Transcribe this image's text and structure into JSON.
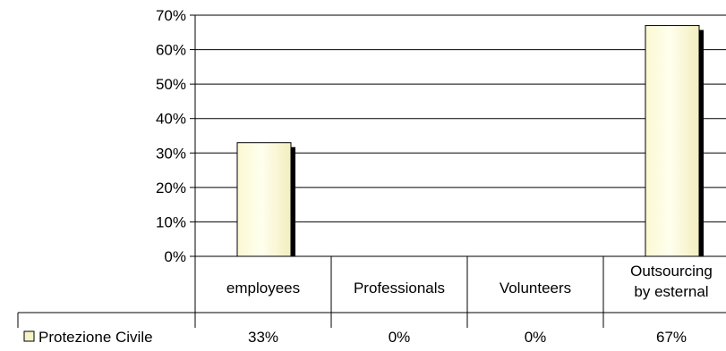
{
  "chart_data": {
    "type": "bar",
    "categories": [
      [
        "employees"
      ],
      [
        "Professionals"
      ],
      [
        "Volunteers"
      ],
      [
        "Outsourcing",
        "by esternal"
      ]
    ],
    "series": [
      {
        "name": "Protezione Civile",
        "values": [
          33,
          0,
          0,
          67
        ],
        "labels": [
          "33%",
          "0%",
          "0%",
          "67%"
        ]
      }
    ],
    "ylim": [
      0,
      70
    ],
    "yticks": [
      "0%",
      "10%",
      "20%",
      "30%",
      "40%",
      "50%",
      "60%",
      "70%"
    ],
    "grid": true,
    "legend": "data-table",
    "colors": {
      "bar_light": "#ffffe8",
      "bar_mid": "#f6f3c6",
      "shadow": "#000000",
      "grid": "#000000"
    }
  }
}
